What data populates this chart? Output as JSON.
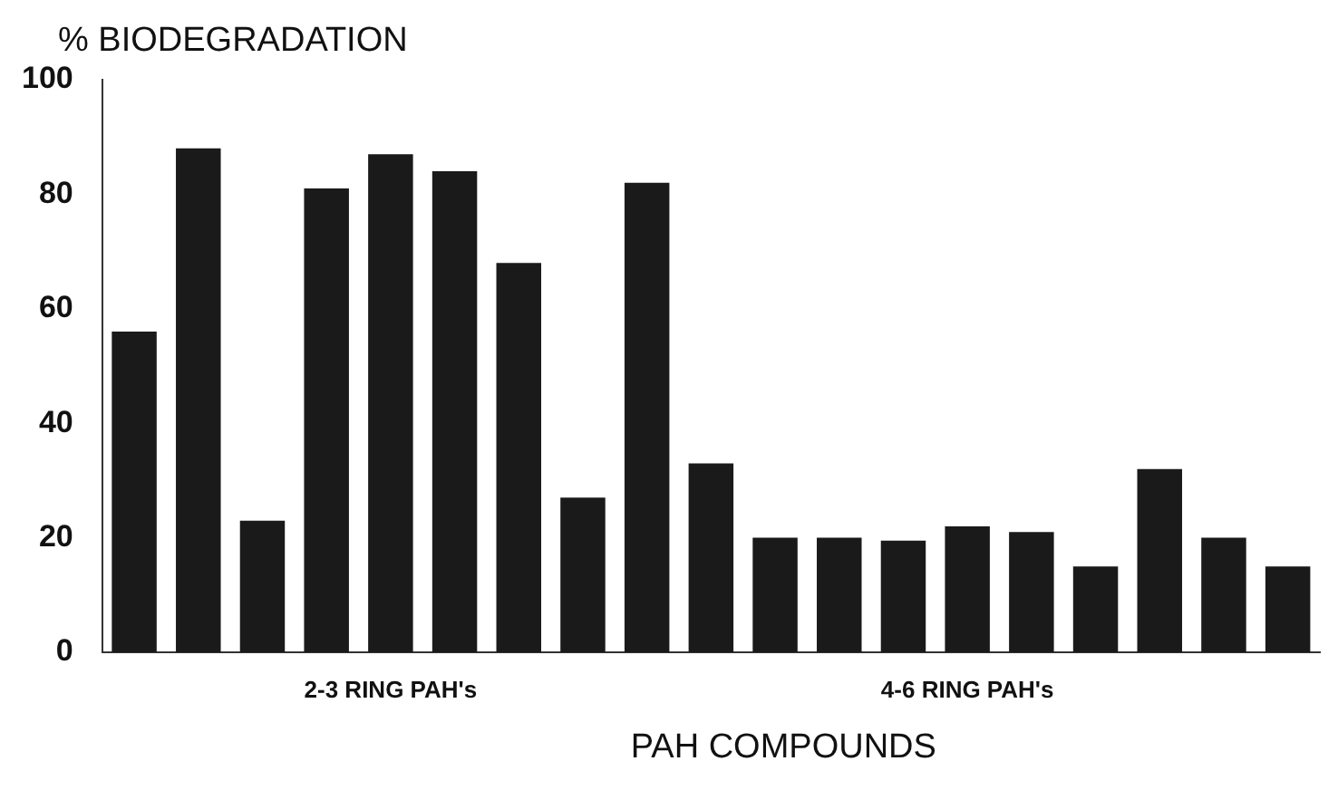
{
  "chart_data": {
    "type": "bar",
    "ylabel": "% BIODEGRADATION",
    "xlabel": "PAH COMPOUNDS",
    "categories": [
      null,
      null,
      null,
      null,
      null,
      null,
      null,
      null,
      null,
      null,
      null,
      null,
      null,
      null,
      null,
      null,
      null,
      null,
      null
    ],
    "values": [
      56,
      88,
      23,
      81,
      87,
      84,
      68,
      27,
      82,
      33,
      20,
      20,
      19.5,
      22,
      21,
      15,
      32,
      20,
      15
    ],
    "color": "#1a1a1a",
    "ylim": [
      0,
      100
    ],
    "yticks": [
      0,
      20,
      40,
      60,
      80,
      100
    ],
    "grid": false,
    "legend": false,
    "annotations": [
      "2-3 RING PAH's",
      "4-6 RING PAH's"
    ]
  }
}
